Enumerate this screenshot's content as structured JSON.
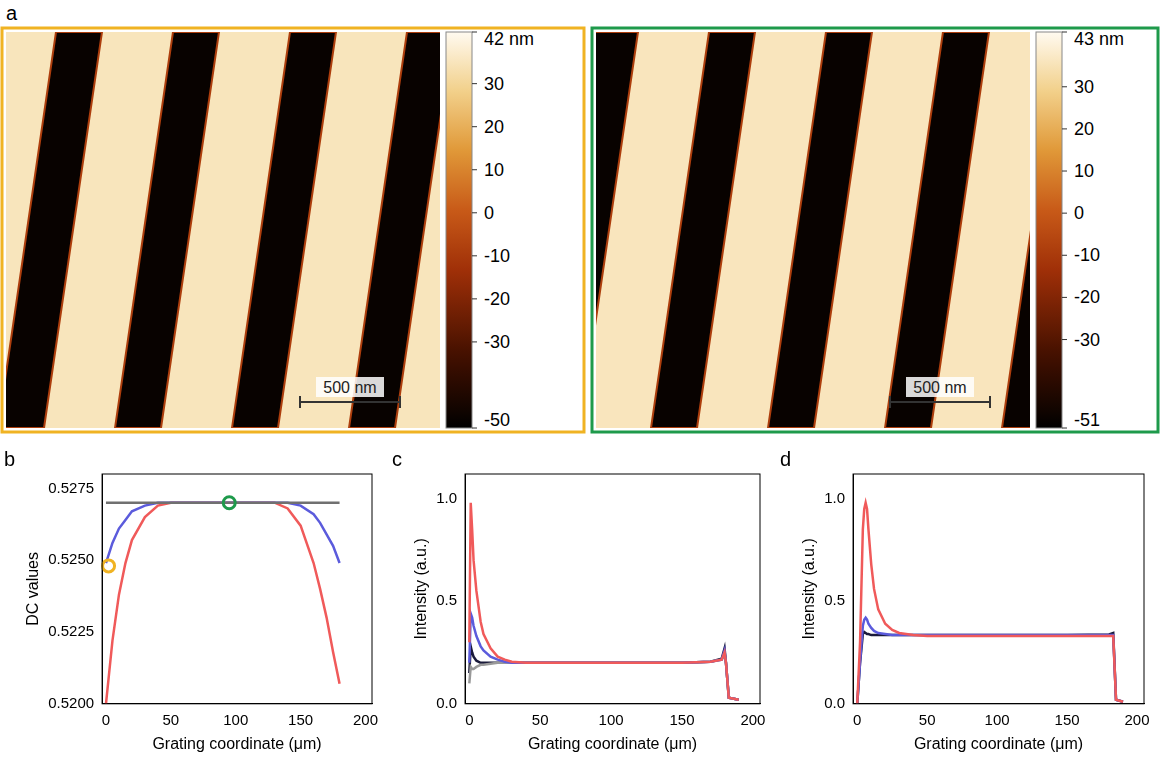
{
  "afm_images": {
    "panel": "a",
    "images": [
      {
        "frame_color": "#f0b323",
        "plateau_height": 35,
        "trench_height": -48,
        "scale_bar": "500 nm",
        "colorbar": {
          "range": [
            -50,
            42
          ],
          "ticks": [
            -50,
            -30,
            -20,
            -10,
            0,
            10,
            20,
            30,
            {
              "value": 42,
              "label": "42 nm"
            }
          ]
        }
      },
      {
        "frame_color": "#1e9a4b",
        "plateau_height": 36,
        "trench_height": -49,
        "scale_bar": "500 nm",
        "colorbar": {
          "range": [
            -51,
            43
          ],
          "ticks": [
            -51,
            -30,
            -20,
            -10,
            0,
            10,
            20,
            30,
            {
              "value": 43,
              "label": "43 nm"
            }
          ]
        }
      }
    ]
  },
  "chart_data": [
    {
      "panel": "b",
      "type": "line",
      "x_label": "Grating coordinate (μm)",
      "y_label": "DC values",
      "grid": false,
      "xlim": [
        -3,
        205
      ],
      "xticks": [
        0,
        50,
        100,
        150,
        200
      ],
      "ylim": [
        0.52,
        0.528
      ],
      "yticks": [
        {
          "value": 0.52,
          "label": "0.5200"
        },
        {
          "value": 0.5225,
          "label": "0.5225"
        },
        {
          "value": 0.525,
          "label": "0.5250"
        },
        {
          "value": 0.5275,
          "label": "0.5275"
        }
      ],
      "series": [
        {
          "color": "#707070",
          "marker": "none",
          "line_style": "solid",
          "x": [
            0,
            5,
            10,
            15,
            20,
            30,
            40,
            50,
            60,
            70,
            80,
            90,
            100,
            110,
            120,
            130,
            140,
            150,
            160,
            165,
            170,
            175,
            180
          ],
          "values": [
            0.527,
            0.527,
            0.527,
            0.527,
            0.527,
            0.527,
            0.527,
            0.527,
            0.527,
            0.527,
            0.527,
            0.527,
            0.527,
            0.527,
            0.527,
            0.527,
            0.527,
            0.527,
            0.527,
            0.527,
            0.527,
            0.527,
            0.527
          ]
        },
        {
          "color": "#5b5bdc",
          "marker": "none",
          "line_style": "solid",
          "x": [
            0,
            5,
            10,
            15,
            20,
            30,
            40,
            50,
            60,
            70,
            80,
            90,
            100,
            110,
            120,
            130,
            140,
            150,
            160,
            165,
            170,
            175,
            180
          ],
          "values": [
            0.5249,
            0.5256,
            0.5261,
            0.5264,
            0.5267,
            0.5269,
            0.527,
            0.527,
            0.527,
            0.527,
            0.527,
            0.527,
            0.527,
            0.527,
            0.527,
            0.527,
            0.527,
            0.5269,
            0.5266,
            0.5263,
            0.5259,
            0.5255,
            0.5249
          ]
        },
        {
          "color": "#f05a5a",
          "marker": "none",
          "line_style": "solid",
          "x": [
            0,
            5,
            10,
            15,
            20,
            30,
            40,
            50,
            60,
            70,
            80,
            90,
            100,
            110,
            120,
            130,
            140,
            150,
            160,
            165,
            170,
            175,
            180
          ],
          "values": [
            0.52,
            0.5222,
            0.5238,
            0.5249,
            0.5257,
            0.5265,
            0.5269,
            0.527,
            0.527,
            0.527,
            0.527,
            0.527,
            0.527,
            0.527,
            0.527,
            0.527,
            0.5268,
            0.5262,
            0.5249,
            0.524,
            0.523,
            0.5218,
            0.5207
          ]
        },
        {
          "color": "#f0b323",
          "marker": "circle",
          "line_style": "none",
          "x": [
            2
          ],
          "values": [
            0.5248
          ]
        },
        {
          "color": "#1e9a4b",
          "marker": "circle",
          "line_style": "none",
          "x": [
            95
          ],
          "values": [
            0.527
          ]
        }
      ]
    },
    {
      "panel": "c",
      "type": "line",
      "x_label": "Grating coordinate (μm)",
      "y_label": "Intensity (a.u.)",
      "grid": false,
      "xlim": [
        -3,
        205
      ],
      "xticks": [
        0,
        50,
        100,
        150,
        200
      ],
      "ylim": [
        0,
        1.12
      ],
      "yticks": [
        {
          "value": 0,
          "label": "0.0"
        },
        {
          "value": 0.5,
          "label": "0.5"
        },
        {
          "value": 1,
          "label": "1.0"
        }
      ],
      "series": [
        {
          "color": "#f05a5a",
          "marker": "none",
          "line_style": "solid",
          "x": [
            0,
            1,
            2,
            3,
            5,
            8,
            10,
            15,
            20,
            25,
            30,
            40,
            50,
            100,
            150,
            170,
            178,
            180,
            181,
            183,
            190
          ],
          "values": [
            0.3,
            0.98,
            0.85,
            0.7,
            0.55,
            0.4,
            0.34,
            0.27,
            0.23,
            0.215,
            0.205,
            0.2,
            0.2,
            0.2,
            0.2,
            0.205,
            0.215,
            0.25,
            0.2,
            0.03,
            0.02
          ]
        },
        {
          "color": "#5b5bdc",
          "marker": "none",
          "line_style": "solid",
          "x": [
            0,
            1,
            2,
            3,
            5,
            8,
            10,
            15,
            20,
            25,
            30,
            40,
            50,
            100,
            150,
            170,
            178,
            180,
            181,
            183,
            190
          ],
          "values": [
            0.2,
            0.44,
            0.42,
            0.38,
            0.33,
            0.28,
            0.26,
            0.23,
            0.215,
            0.205,
            0.2,
            0.2,
            0.2,
            0.2,
            0.2,
            0.205,
            0.215,
            0.26,
            0.2,
            0.03,
            0.02
          ]
        },
        {
          "color": "#999999",
          "marker": "none",
          "line_style": "solid",
          "x": [
            0,
            1,
            2,
            3,
            5,
            8,
            10,
            15,
            20,
            25,
            30,
            40,
            50,
            100,
            150,
            170,
            178,
            180,
            181,
            183,
            190
          ],
          "values": [
            0.1,
            0.18,
            0.17,
            0.17,
            0.18,
            0.19,
            0.19,
            0.195,
            0.2,
            0.2,
            0.2,
            0.2,
            0.2,
            0.2,
            0.2,
            0.205,
            0.215,
            0.24,
            0.2,
            0.03,
            0.02
          ]
        },
        {
          "color": "#1a1a3a",
          "marker": "none",
          "line_style": "solid",
          "x": [
            0,
            1,
            2,
            3,
            5,
            8,
            10,
            15,
            20,
            25,
            30,
            40,
            50,
            100,
            150,
            170,
            178,
            180,
            181,
            183,
            190
          ],
          "values": [
            0.15,
            0.28,
            0.25,
            0.23,
            0.21,
            0.2,
            0.2,
            0.2,
            0.2,
            0.2,
            0.2,
            0.2,
            0.2,
            0.2,
            0.2,
            0.205,
            0.22,
            0.27,
            0.2,
            0.03,
            0.02
          ]
        }
      ]
    },
    {
      "panel": "d",
      "type": "line",
      "x_label": "Grating coordinate (μm)",
      "y_label": "Intensity (a.u.)",
      "grid": false,
      "xlim": [
        -3,
        205
      ],
      "xticks": [
        0,
        50,
        100,
        150,
        200
      ],
      "ylim": [
        0,
        1.12
      ],
      "yticks": [
        {
          "value": 0,
          "label": "0.0"
        },
        {
          "value": 0.5,
          "label": "0.5"
        },
        {
          "value": 1,
          "label": "1.0"
        }
      ],
      "series": [
        {
          "color": "#f05a5a",
          "marker": "none",
          "line_style": "solid",
          "x": [
            0,
            2,
            4,
            5,
            6,
            7,
            8,
            10,
            12,
            15,
            20,
            25,
            30,
            40,
            50,
            100,
            150,
            180,
            183,
            185,
            190
          ],
          "values": [
            0,
            0.3,
            0.85,
            0.95,
            0.98,
            0.95,
            0.85,
            0.68,
            0.56,
            0.46,
            0.39,
            0.36,
            0.345,
            0.335,
            0.33,
            0.33,
            0.33,
            0.33,
            0.33,
            0.02,
            0.01
          ]
        },
        {
          "color": "#5b5bdc",
          "marker": "none",
          "line_style": "solid",
          "x": [
            0,
            2,
            4,
            5,
            6,
            7,
            8,
            10,
            12,
            15,
            20,
            25,
            30,
            40,
            50,
            100,
            150,
            180,
            183,
            185,
            190
          ],
          "values": [
            0,
            0.2,
            0.38,
            0.41,
            0.42,
            0.41,
            0.39,
            0.37,
            0.355,
            0.345,
            0.34,
            0.335,
            0.335,
            0.335,
            0.335,
            0.335,
            0.335,
            0.335,
            0.335,
            0.02,
            0.01
          ]
        },
        {
          "color": "#1a1a3a",
          "marker": "none",
          "line_style": "solid",
          "x": [
            0,
            2,
            4,
            5,
            6,
            7,
            8,
            10,
            12,
            15,
            20,
            25,
            30,
            40,
            50,
            100,
            150,
            180,
            183,
            185,
            190
          ],
          "values": [
            0,
            0.2,
            0.34,
            0.35,
            0.345,
            0.34,
            0.34,
            0.335,
            0.335,
            0.335,
            0.335,
            0.335,
            0.335,
            0.335,
            0.335,
            0.335,
            0.335,
            0.338,
            0.345,
            0.02,
            0.01
          ]
        }
      ]
    }
  ]
}
